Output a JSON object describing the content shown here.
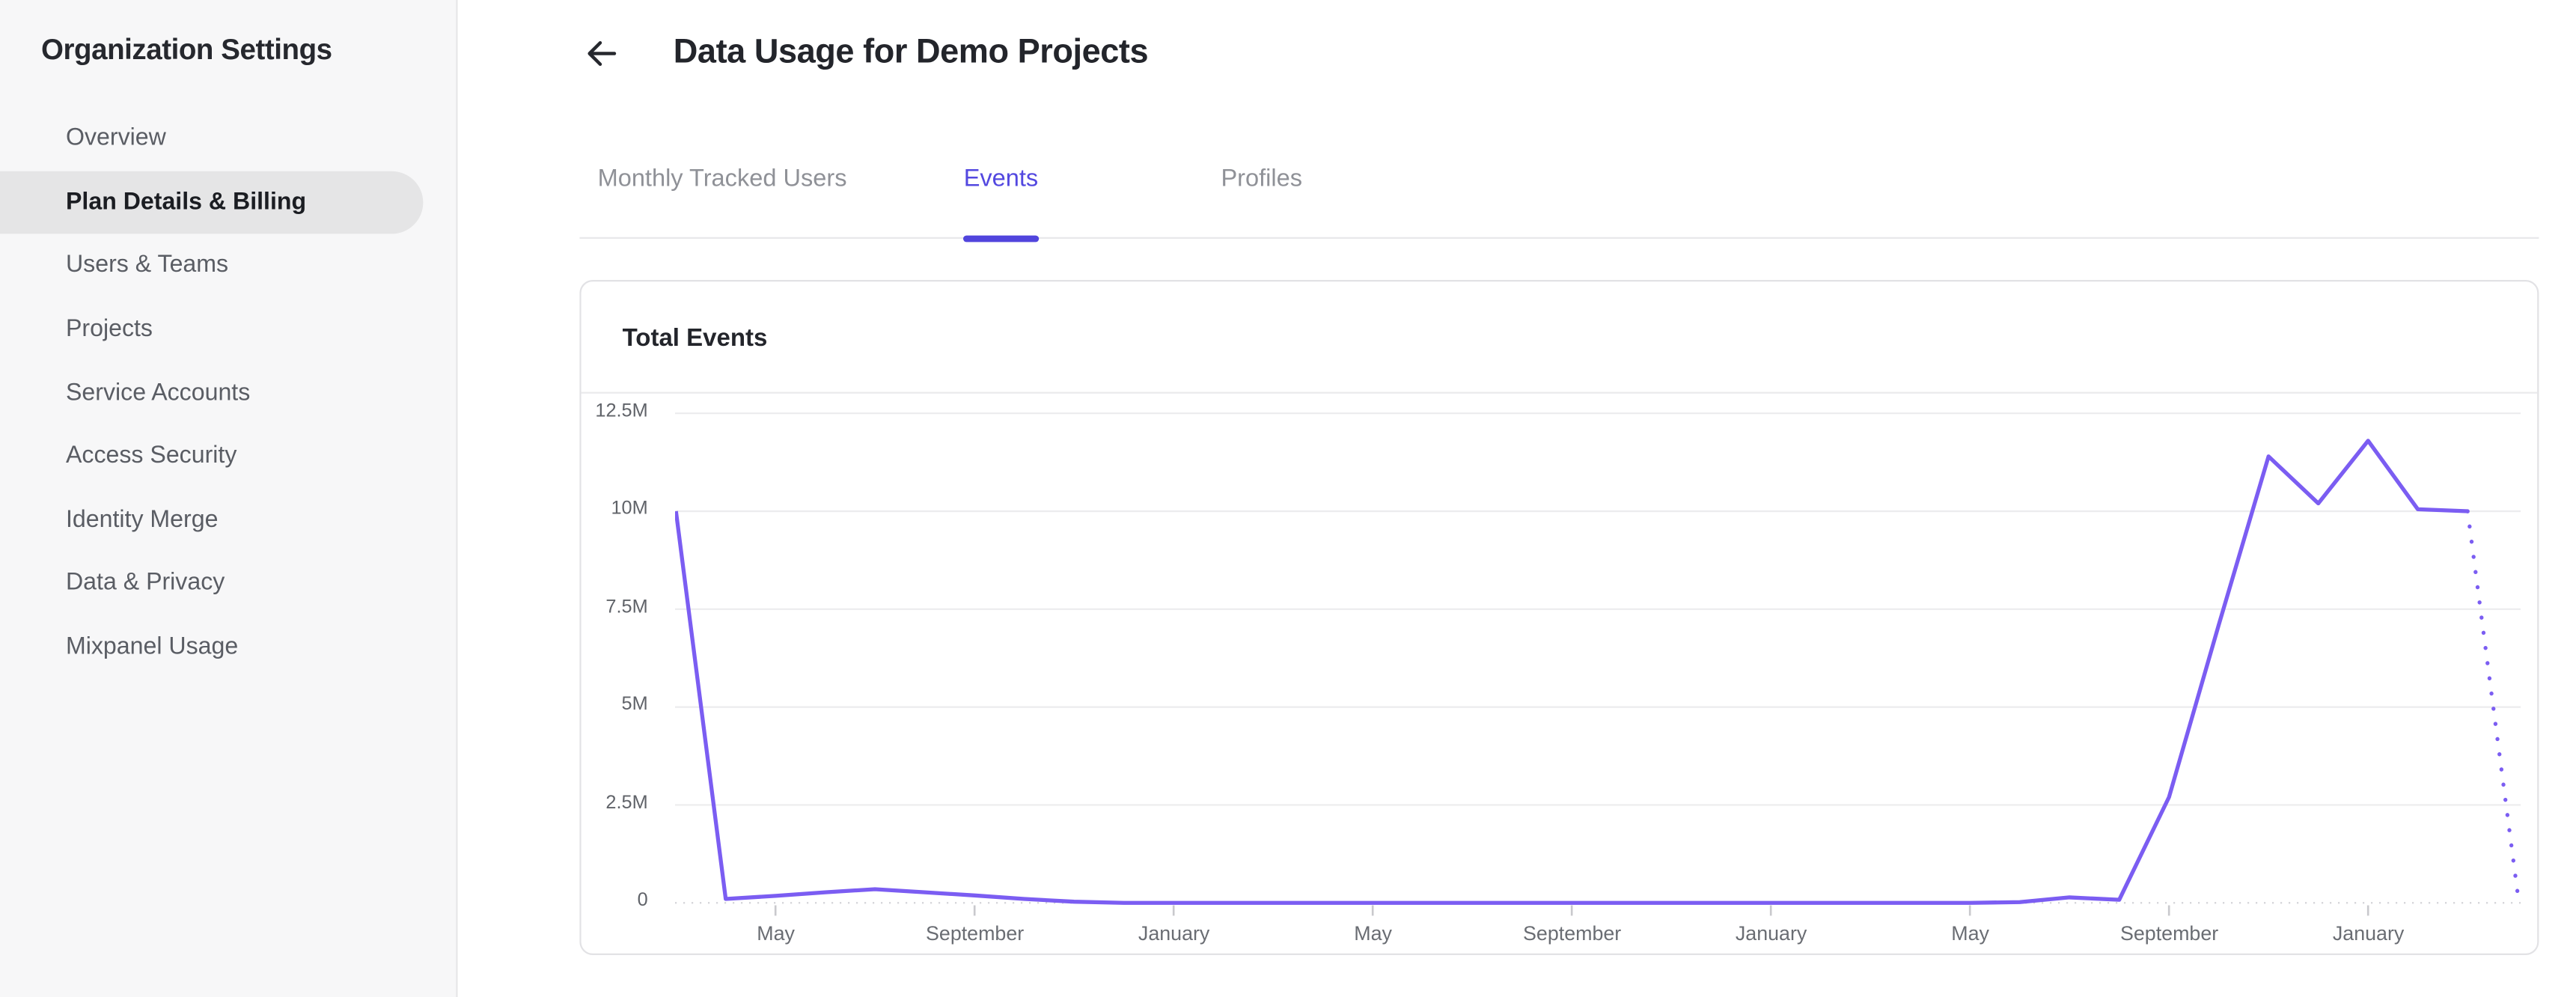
{
  "sidebar": {
    "title": "Organization Settings",
    "items": [
      {
        "label": "Overview",
        "selected": false
      },
      {
        "label": "Plan Details & Billing",
        "selected": true
      },
      {
        "label": "Users & Teams",
        "selected": false
      },
      {
        "label": "Projects",
        "selected": false
      },
      {
        "label": "Service Accounts",
        "selected": false
      },
      {
        "label": "Access Security",
        "selected": false
      },
      {
        "label": "Identity Merge",
        "selected": false
      },
      {
        "label": "Data & Privacy",
        "selected": false
      },
      {
        "label": "Mixpanel Usage",
        "selected": false
      }
    ]
  },
  "header": {
    "title": "Data Usage for Demo Projects",
    "back_icon": "left-arrow"
  },
  "tabs": [
    {
      "label": "Monthly Tracked Users",
      "active": false
    },
    {
      "label": "Events",
      "active": true
    },
    {
      "label": "Profiles",
      "active": false
    }
  ],
  "card": {
    "title": "Total Events"
  },
  "colors": {
    "accent_purple": "#5348e0",
    "tab_indicator": "#5145dd",
    "chart_line": "#7b5df2",
    "gridline": "#ececee",
    "zero_line": "#d4d4d8",
    "tick": "#c9c9cd"
  },
  "chart_data": {
    "type": "line",
    "title": "Total Events",
    "xlabel": "",
    "ylabel": "",
    "values_unit": "millions of events",
    "ylim_millions": [
      0,
      12.5
    ],
    "grid": "horizontal",
    "legend": "none",
    "y_ticks": [
      {
        "label": "12.5M",
        "value": 12.5
      },
      {
        "label": "10M",
        "value": 10
      },
      {
        "label": "7.5M",
        "value": 7.5
      },
      {
        "label": "5M",
        "value": 5
      },
      {
        "label": "2.5M",
        "value": 2.5
      },
      {
        "label": "0",
        "value": 0
      }
    ],
    "x_ticks": [
      {
        "label": "May",
        "m": 0
      },
      {
        "label": "September",
        "m": 4
      },
      {
        "label": "January",
        "m": 8
      },
      {
        "label": "May",
        "m": 12
      },
      {
        "label": "September",
        "m": 16
      },
      {
        "label": "January",
        "m": 20
      },
      {
        "label": "May",
        "m": 24
      },
      {
        "label": "September",
        "m": 28
      },
      {
        "label": "January",
        "m": 32
      }
    ],
    "series": [
      {
        "name": "Total Events",
        "style": "solid",
        "points": [
          [
            -2,
            10
          ],
          [
            -1,
            0.1
          ],
          [
            0,
            0.18
          ],
          [
            1,
            0.27
          ],
          [
            2,
            0.35
          ],
          [
            3,
            0.27
          ],
          [
            4,
            0.19
          ],
          [
            5,
            0.1
          ],
          [
            6,
            0.03
          ],
          [
            7,
            0
          ],
          [
            8,
            0
          ],
          [
            9,
            0
          ],
          [
            10,
            0
          ],
          [
            11,
            0
          ],
          [
            12,
            0
          ],
          [
            13,
            0
          ],
          [
            14,
            0
          ],
          [
            15,
            0
          ],
          [
            16,
            0
          ],
          [
            17,
            0
          ],
          [
            18,
            0
          ],
          [
            19,
            0
          ],
          [
            20,
            0
          ],
          [
            21,
            0
          ],
          [
            22,
            0
          ],
          [
            23,
            0
          ],
          [
            24,
            0
          ],
          [
            25,
            0.02
          ],
          [
            26,
            0.14
          ],
          [
            27,
            0.08
          ],
          [
            28,
            2.7
          ],
          [
            29,
            7.1
          ],
          [
            30,
            11.4
          ],
          [
            31,
            10.2
          ],
          [
            32,
            11.8
          ],
          [
            33,
            10.05
          ],
          [
            34,
            10.0
          ]
        ]
      },
      {
        "name": "Total Events (projected)",
        "style": "dotted",
        "points": [
          [
            34,
            10.0
          ],
          [
            35,
            0.3
          ]
        ]
      }
    ]
  }
}
